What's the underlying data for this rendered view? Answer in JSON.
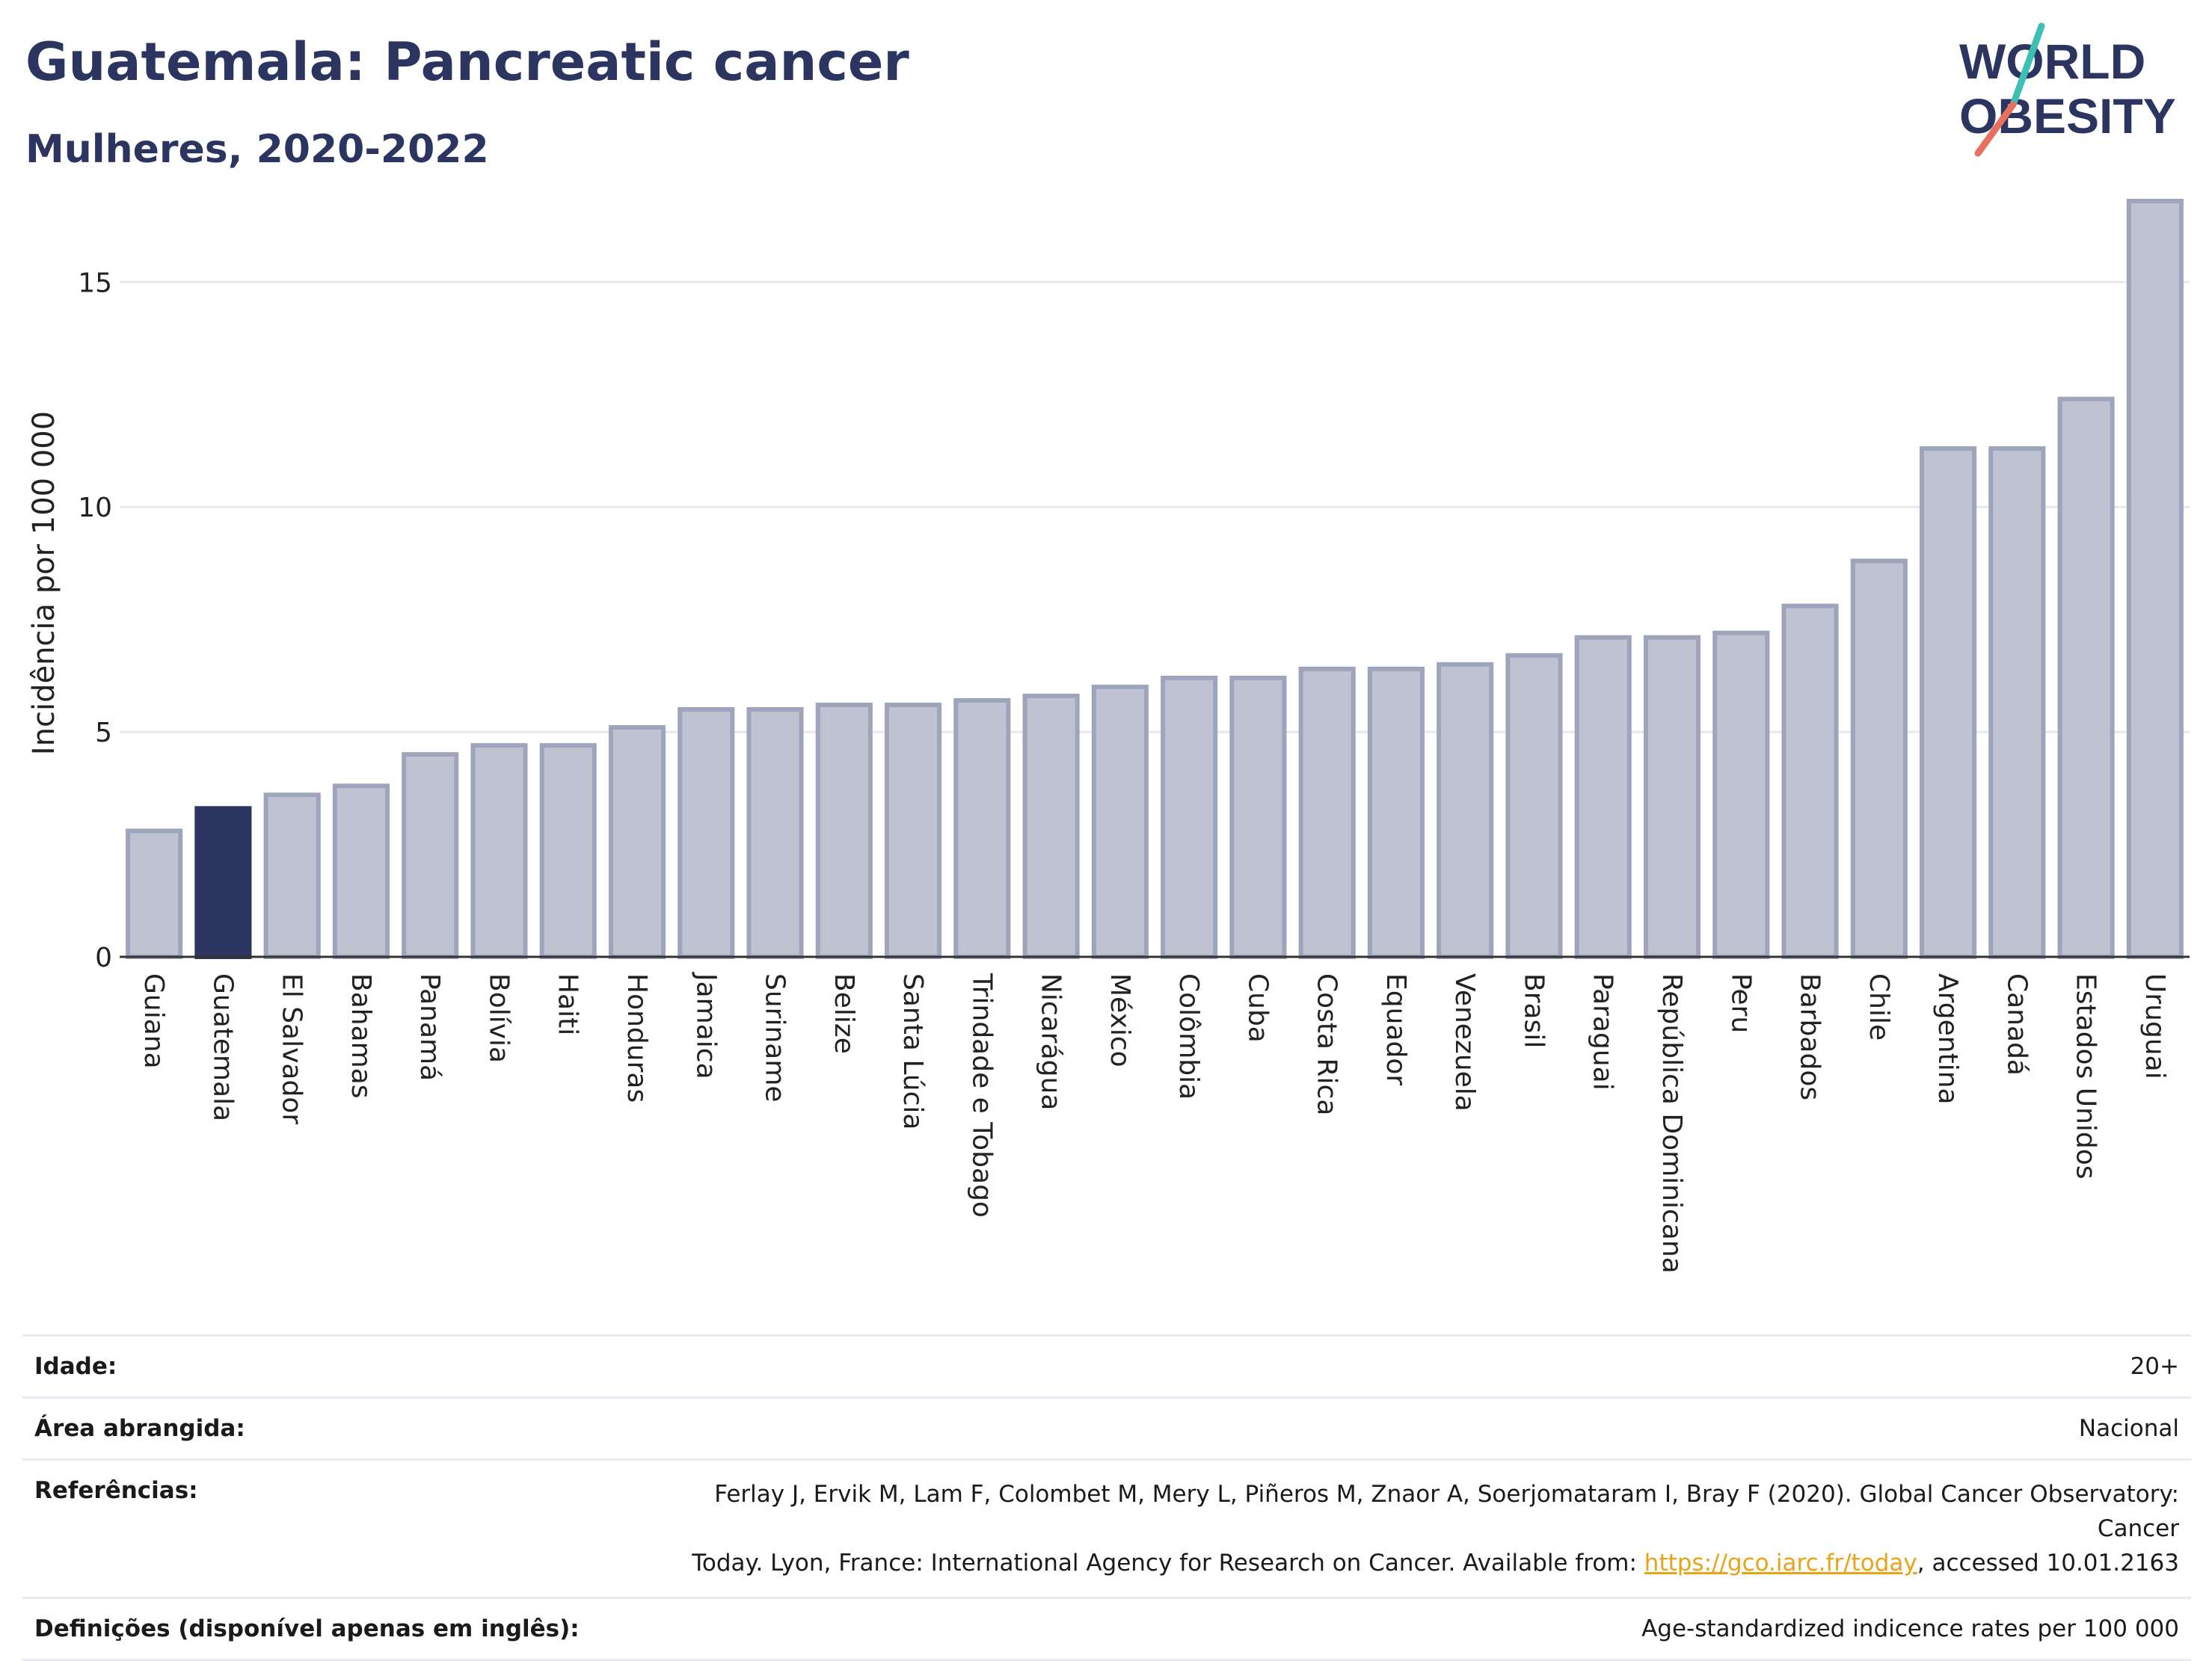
{
  "header": {
    "title": "Guatemala: Pancreatic cancer",
    "subtitle": "Mulheres, 2020-2022"
  },
  "logo": {
    "line1": "WORLD",
    "line2": "OBESITY",
    "colors": {
      "text": "#2b3560",
      "slash_top": "#3dbfb5",
      "slash_bottom": "#e8705f"
    }
  },
  "colors": {
    "bar_fill": "#bfc3d1",
    "bar_stroke": "#9ea4bb",
    "highlight": "#2b3560",
    "grid": "#e6e8ee",
    "axis": "#333333"
  },
  "chart_data": {
    "type": "bar",
    "title": "Guatemala: Pancreatic cancer",
    "subtitle": "Mulheres, 2020-2022",
    "ylabel": "Incidência por 100 000",
    "xlabel": "",
    "ylim": [
      0,
      17
    ],
    "yticks": [
      0,
      5,
      10,
      15
    ],
    "grid": true,
    "highlight": "Guatemala",
    "categories": [
      "Guiana",
      "Guatemala",
      "El Salvador",
      "Bahamas",
      "Panamá",
      "Bolívia",
      "Haiti",
      "Honduras",
      "Jamaica",
      "Suriname",
      "Belize",
      "Santa Lúcia",
      "Trindade e Tobago",
      "Nicarágua",
      "México",
      "Colômbia",
      "Cuba",
      "Costa Rica",
      "Equador",
      "Venezuela",
      "Brasil",
      "Paraguai",
      "República Dominicana",
      "Peru",
      "Barbados",
      "Chile",
      "Argentina",
      "Canadá",
      "Estados Unidos",
      "Uruguai"
    ],
    "values": [
      2.8,
      3.3,
      3.6,
      3.8,
      4.5,
      4.7,
      4.7,
      5.1,
      5.5,
      5.5,
      5.6,
      5.6,
      5.7,
      5.8,
      6.0,
      6.2,
      6.2,
      6.4,
      6.4,
      6.5,
      6.7,
      7.1,
      7.1,
      7.2,
      7.8,
      8.8,
      11.3,
      11.3,
      12.4,
      16.8
    ]
  },
  "info": {
    "age_label": "Idade:",
    "age_value": "20+",
    "area_label": "Área abrangida:",
    "area_value": "Nacional",
    "refs_label": "Referências:",
    "refs_text_line1": "Ferlay J, Ervik M, Lam F, Colombet M, Mery L, Piñeros M, Znaor A, Soerjomataram I, Bray F (2020). Global Cancer Observatory: Cancer",
    "refs_text_line2": "Today. Lyon, France: International Agency for Research on Cancer. Available from: ",
    "refs_link": "https://gco.iarc.fr/today",
    "refs_text_after": ", accessed 10.01.2163",
    "defs_label": "Definições (disponível apenas em inglês):",
    "defs_value": "Age-standardized indicence rates per 100 000"
  }
}
